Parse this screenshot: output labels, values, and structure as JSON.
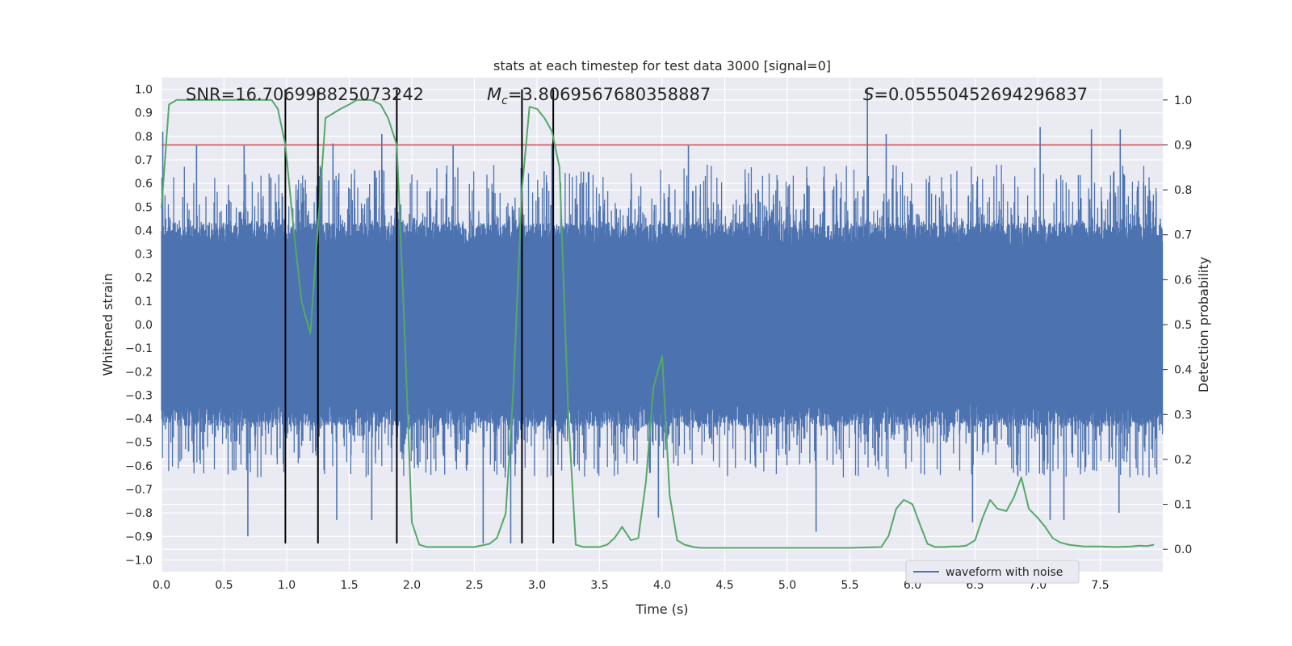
{
  "chart_data": {
    "type": "line",
    "title": "stats at each timestep for test data 3000 [signal=0]",
    "xlabel": "Time (s)",
    "ylabel_left": "Whitened strain",
    "ylabel_right": "Detection probability",
    "xlim": [
      0,
      8
    ],
    "ylim_left": [
      -1.05,
      1.05
    ],
    "ylim_right": [
      -0.05,
      1.05
    ],
    "x_ticks": [
      "0.0",
      "0.5",
      "1.0",
      "1.5",
      "2.0",
      "2.5",
      "3.0",
      "3.5",
      "4.0",
      "4.5",
      "5.0",
      "5.5",
      "6.0",
      "6.5",
      "7.0",
      "7.5"
    ],
    "y_ticks_left": [
      "1.0",
      "0.9",
      "0.8",
      "0.7",
      "0.6",
      "0.5",
      "0.4",
      "0.3",
      "0.2",
      "0.1",
      "0.0",
      "−0.1",
      "−0.2",
      "−0.3",
      "−0.4",
      "−0.5",
      "−0.6",
      "−0.7",
      "−0.8",
      "−0.9",
      "−1.0"
    ],
    "y_ticks_right": [
      "1.0",
      "0.9",
      "0.8",
      "0.7",
      "0.6",
      "0.5",
      "0.4",
      "0.3",
      "0.2",
      "0.1",
      "0.0"
    ],
    "grid": true,
    "legend": {
      "placement": "lower-right",
      "entries": [
        "waveform with noise"
      ]
    },
    "annotations": {
      "snr": "SNR=16.706998825073242",
      "mc_symbol": "M",
      "mc_sub": "c",
      "mc_value": "=3.8069567680358887",
      "s_symbol": "S",
      "s_value": "=0.05550452694296837"
    },
    "threshold": {
      "axis": "right",
      "value": 0.9,
      "color": "#c44e52"
    },
    "event_lines": {
      "x": [
        0.99,
        1.25,
        1.88,
        2.88,
        3.13
      ],
      "y_range": [
        -0.93,
        1.0
      ],
      "color": "#000000"
    },
    "waveform": {
      "name": "waveform with noise",
      "color": "#4c72b0",
      "duration": 8.0,
      "core_amplitude": 0.43,
      "spikes_pos": [
        [
          0.01,
          0.82
        ],
        [
          0.28,
          0.76
        ],
        [
          0.66,
          0.76
        ],
        [
          1.37,
          0.77
        ],
        [
          1.76,
          0.81
        ],
        [
          2.33,
          0.76
        ],
        [
          3.12,
          0.77
        ],
        [
          4.21,
          0.76
        ],
        [
          5.64,
          1.0
        ],
        [
          5.79,
          0.81
        ],
        [
          7.02,
          0.84
        ],
        [
          7.43,
          0.83
        ],
        [
          7.66,
          0.83
        ]
      ],
      "spikes_neg": [
        [
          0.69,
          -0.9
        ],
        [
          1.4,
          -0.83
        ],
        [
          1.68,
          -0.83
        ],
        [
          1.88,
          -0.83
        ],
        [
          2.57,
          -0.93
        ],
        [
          2.79,
          -0.93
        ],
        [
          3.97,
          -0.82
        ],
        [
          5.23,
          -0.88
        ],
        [
          6.48,
          -0.84
        ],
        [
          7.1,
          -0.83
        ],
        [
          7.21,
          -0.83
        ],
        [
          7.65,
          -0.8
        ]
      ]
    },
    "series": [
      {
        "name": "",
        "axis": "right",
        "color": "#55a868",
        "x": [
          0.0,
          0.06,
          0.12,
          0.25,
          0.45,
          0.65,
          0.88,
          0.93,
          0.99,
          1.06,
          1.12,
          1.19,
          1.25,
          1.31,
          1.37,
          1.43,
          1.5,
          1.56,
          1.62,
          1.68,
          1.75,
          1.81,
          1.88,
          1.94,
          2.0,
          2.06,
          2.12,
          2.25,
          2.5,
          2.62,
          2.68,
          2.75,
          2.81,
          2.88,
          2.94,
          3.0,
          3.06,
          3.12,
          3.18,
          3.25,
          3.31,
          3.37,
          3.5,
          3.56,
          3.62,
          3.68,
          3.75,
          3.81,
          3.87,
          3.93,
          4.0,
          4.06,
          4.12,
          4.18,
          4.25,
          4.31,
          4.5,
          4.75,
          5.0,
          5.25,
          5.5,
          5.75,
          5.81,
          5.87,
          5.93,
          6.0,
          6.06,
          6.12,
          6.18,
          6.25,
          6.31,
          6.37,
          6.43,
          6.5,
          6.56,
          6.62,
          6.68,
          6.75,
          6.81,
          6.87,
          6.93,
          7.0,
          7.06,
          7.12,
          7.18,
          7.25,
          7.31,
          7.37,
          7.5,
          7.62,
          7.75,
          7.81,
          7.87,
          7.93
        ],
        "values": [
          0.76,
          0.99,
          1.0,
          1.0,
          1.0,
          1.0,
          1.0,
          0.98,
          0.9,
          0.7,
          0.55,
          0.48,
          0.72,
          0.96,
          0.97,
          0.98,
          0.99,
          1.0,
          1.0,
          1.0,
          0.99,
          0.96,
          0.9,
          0.5,
          0.06,
          0.01,
          0.005,
          0.005,
          0.005,
          0.012,
          0.025,
          0.08,
          0.35,
          0.8,
          0.985,
          0.98,
          0.96,
          0.93,
          0.85,
          0.3,
          0.01,
          0.005,
          0.005,
          0.01,
          0.025,
          0.05,
          0.02,
          0.025,
          0.15,
          0.36,
          0.43,
          0.12,
          0.02,
          0.01,
          0.005,
          0.003,
          0.003,
          0.003,
          0.003,
          0.003,
          0.003,
          0.005,
          0.03,
          0.09,
          0.11,
          0.1,
          0.055,
          0.012,
          0.005,
          0.005,
          0.006,
          0.006,
          0.008,
          0.02,
          0.07,
          0.11,
          0.09,
          0.085,
          0.115,
          0.16,
          0.09,
          0.07,
          0.05,
          0.025,
          0.015,
          0.01,
          0.008,
          0.006,
          0.006,
          0.005,
          0.006,
          0.008,
          0.007,
          0.01
        ]
      }
    ]
  }
}
